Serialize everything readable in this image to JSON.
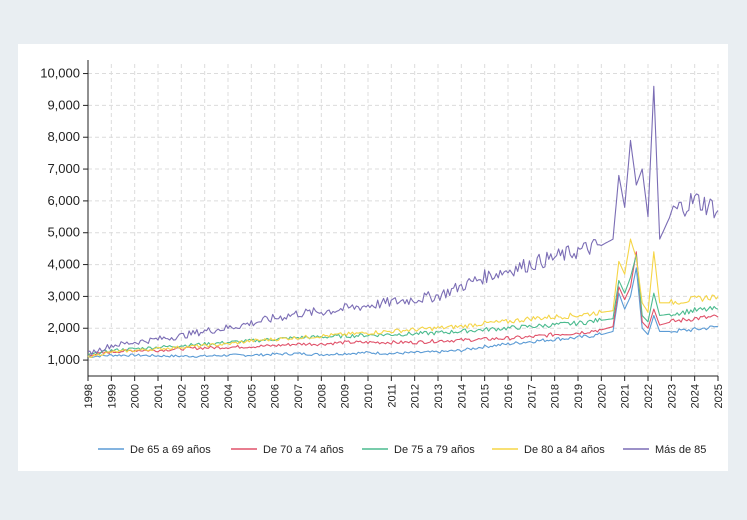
{
  "chart_data": {
    "type": "line",
    "title": "",
    "xlabel": "",
    "ylabel": "",
    "x_start": "1998-01",
    "x_end": "2025-01",
    "xlim": [
      1998,
      2025
    ],
    "ylim": [
      500,
      10300
    ],
    "y_ticks": [
      1000,
      2000,
      3000,
      4000,
      5000,
      6000,
      7000,
      8000,
      9000,
      10000
    ],
    "y_tick_labels": [
      "1,000",
      "2,000",
      "3,000",
      "4,000",
      "5,000",
      "6,000",
      "7,000",
      "8,000",
      "9,000",
      "10,000"
    ],
    "x_tick_labels": [
      "1998",
      "1999",
      "2000",
      "2001",
      "2002",
      "2003",
      "2004",
      "2005",
      "2006",
      "2007",
      "2008",
      "2009",
      "2010",
      "2011",
      "2012",
      "2013",
      "2014",
      "2015",
      "2016",
      "2017",
      "2018",
      "2019",
      "2020",
      "2021",
      "2022",
      "2023",
      "2024",
      "2025"
    ],
    "grid": true,
    "legend_position": "bottom",
    "series": [
      {
        "name": "De 65 a 69 años",
        "color": "#5b9bd5",
        "x": [
          1998.0,
          1999.0,
          2000.0,
          2001.0,
          2002.0,
          2003.0,
          2004.0,
          2005.0,
          2006.0,
          2007.0,
          2008.0,
          2009.0,
          2010.0,
          2011.0,
          2012.0,
          2013.0,
          2014.0,
          2015.0,
          2016.0,
          2017.0,
          2018.0,
          2019.0,
          2020.0,
          2020.5,
          2020.75,
          2021.0,
          2021.25,
          2021.5,
          2021.75,
          2022.0,
          2022.25,
          2022.5,
          2023.0,
          2024.0,
          2025.0
        ],
        "y": [
          1100,
          1150,
          1150,
          1130,
          1120,
          1120,
          1150,
          1150,
          1180,
          1200,
          1170,
          1200,
          1230,
          1200,
          1230,
          1250,
          1300,
          1420,
          1500,
          1580,
          1650,
          1700,
          1800,
          1900,
          3100,
          2600,
          3000,
          3900,
          2000,
          1800,
          2400,
          1900,
          1900,
          1950,
          2050
        ]
      },
      {
        "name": "De 70 a 74 años",
        "color": "#e0526a",
        "x": [
          1998.0,
          1999.0,
          2000.0,
          2001.0,
          2002.0,
          2003.0,
          2004.0,
          2005.0,
          2006.0,
          2007.0,
          2008.0,
          2009.0,
          2010.0,
          2011.0,
          2012.0,
          2013.0,
          2014.0,
          2015.0,
          2016.0,
          2017.0,
          2018.0,
          2019.0,
          2020.0,
          2020.5,
          2020.75,
          2021.0,
          2021.25,
          2021.5,
          2021.75,
          2022.0,
          2022.25,
          2022.5,
          2023.0,
          2024.0,
          2025.0
        ],
        "y": [
          1150,
          1250,
          1300,
          1300,
          1350,
          1380,
          1400,
          1420,
          1450,
          1500,
          1500,
          1550,
          1550,
          1550,
          1550,
          1600,
          1620,
          1650,
          1680,
          1720,
          1800,
          1850,
          1950,
          2050,
          3300,
          2900,
          3300,
          4400,
          2200,
          2000,
          2600,
          2100,
          2200,
          2300,
          2350
        ]
      },
      {
        "name": "De 75 a 79 años",
        "color": "#4cbb8f",
        "x": [
          1998.0,
          1999.0,
          2000.0,
          2001.0,
          2002.0,
          2003.0,
          2004.0,
          2005.0,
          2006.0,
          2007.0,
          2008.0,
          2009.0,
          2010.0,
          2011.0,
          2012.0,
          2013.0,
          2014.0,
          2015.0,
          2016.0,
          2017.0,
          2018.0,
          2019.0,
          2020.0,
          2020.5,
          2020.75,
          2021.0,
          2021.25,
          2021.5,
          2021.75,
          2022.0,
          2022.25,
          2022.5,
          2023.0,
          2024.0,
          2025.0
        ],
        "y": [
          1150,
          1300,
          1350,
          1400,
          1450,
          1500,
          1550,
          1600,
          1650,
          1700,
          1720,
          1750,
          1780,
          1800,
          1820,
          1850,
          1900,
          1950,
          2000,
          2050,
          2100,
          2150,
          2250,
          2300,
          3500,
          3100,
          3600,
          4300,
          2400,
          2200,
          3100,
          2400,
          2450,
          2550,
          2600
        ]
      },
      {
        "name": "De 80 a 84 años",
        "color": "#f5d547",
        "x": [
          1998.0,
          1999.0,
          2000.0,
          2001.0,
          2002.0,
          2003.0,
          2004.0,
          2005.0,
          2006.0,
          2007.0,
          2008.0,
          2009.0,
          2010.0,
          2011.0,
          2012.0,
          2013.0,
          2014.0,
          2015.0,
          2016.0,
          2017.0,
          2018.0,
          2019.0,
          2020.0,
          2020.5,
          2020.75,
          2021.0,
          2021.25,
          2021.5,
          2021.75,
          2022.0,
          2022.25,
          2022.5,
          2023.0,
          2024.0,
          2025.0
        ],
        "y": [
          1100,
          1250,
          1300,
          1350,
          1400,
          1450,
          1500,
          1600,
          1650,
          1700,
          1750,
          1800,
          1850,
          1900,
          1950,
          2000,
          2050,
          2150,
          2200,
          2300,
          2350,
          2400,
          2500,
          2550,
          4100,
          3700,
          4800,
          4200,
          2800,
          2500,
          4400,
          2800,
          2800,
          2900,
          3000
        ]
      },
      {
        "name": "Más de 85",
        "color": "#7b6db5",
        "x": [
          1998.0,
          1999.0,
          2000.0,
          2001.0,
          2002.0,
          2003.0,
          2004.0,
          2005.0,
          2006.0,
          2007.0,
          2008.0,
          2009.0,
          2010.0,
          2011.0,
          2012.0,
          2013.0,
          2014.0,
          2015.0,
          2016.0,
          2017.0,
          2018.0,
          2019.0,
          2020.0,
          2020.5,
          2020.75,
          2021.0,
          2021.25,
          2021.5,
          2021.75,
          2022.0,
          2022.25,
          2022.5,
          2023.0,
          2024.0,
          2025.0
        ],
        "y": [
          1200,
          1450,
          1550,
          1650,
          1750,
          1900,
          2000,
          2150,
          2300,
          2450,
          2500,
          2600,
          2700,
          2800,
          2900,
          3000,
          3300,
          3600,
          3800,
          4000,
          4200,
          4400,
          4600,
          4800,
          6800,
          5800,
          7900,
          6500,
          7000,
          5500,
          9600,
          4800,
          5600,
          6000,
          5700
        ]
      }
    ]
  }
}
